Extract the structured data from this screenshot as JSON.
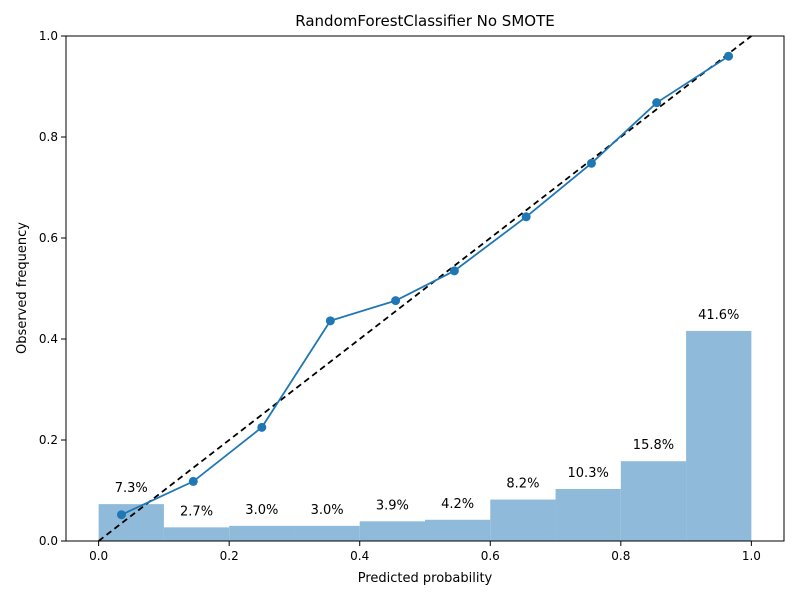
{
  "chart_data": {
    "type": "line",
    "title": "RandomForestClassifier No SMOTE",
    "xlabel": "Predicted probability",
    "ylabel": "Observed frequency",
    "xlim": [
      -0.05,
      1.05
    ],
    "ylim": [
      0.0,
      1.0
    ],
    "x_ticks": [
      "0.0",
      "0.2",
      "0.4",
      "0.6",
      "0.8",
      "1.0"
    ],
    "y_ticks": [
      "0.0",
      "0.2",
      "0.4",
      "0.6",
      "0.8",
      "1.0"
    ],
    "grid": false,
    "colors": {
      "curve": "#1f77b4",
      "bars": "#8fbad9",
      "reference": "#000000"
    },
    "calibration_curve": {
      "x": [
        0.035,
        0.145,
        0.25,
        0.355,
        0.455,
        0.545,
        0.655,
        0.755,
        0.855,
        0.965
      ],
      "y": [
        0.052,
        0.118,
        0.225,
        0.436,
        0.476,
        0.535,
        0.642,
        0.748,
        0.868,
        0.96
      ]
    },
    "reference_line": {
      "x": [
        0.0,
        1.0
      ],
      "y": [
        0.0,
        1.0
      ],
      "style": "dashed"
    },
    "histogram": {
      "bin_edges": [
        0.0,
        0.1,
        0.2,
        0.3,
        0.4,
        0.5,
        0.6,
        0.7,
        0.8,
        0.9,
        1.0
      ],
      "values": [
        0.073,
        0.027,
        0.03,
        0.03,
        0.039,
        0.042,
        0.082,
        0.103,
        0.158,
        0.416
      ],
      "labels": [
        "7.3%",
        "2.7%",
        "3.0%",
        "3.0%",
        "3.9%",
        "4.2%",
        "8.2%",
        "10.3%",
        "15.8%",
        "41.6%"
      ]
    }
  }
}
